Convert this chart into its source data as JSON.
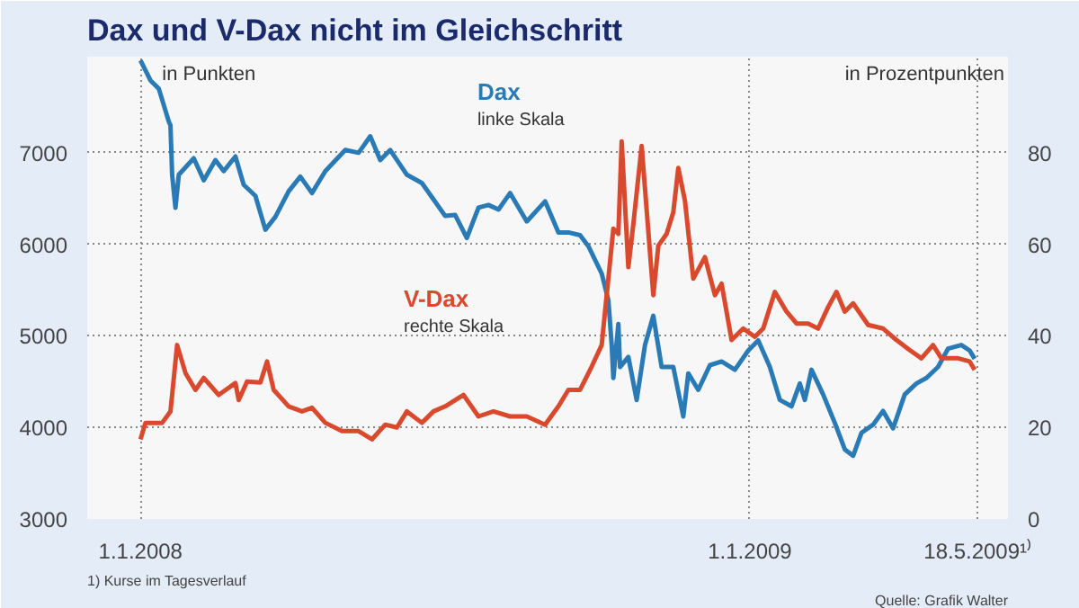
{
  "chart_data": {
    "type": "line",
    "title": "Dax und V-Dax nicht im Gleichschritt",
    "ylabel": "in Punkten",
    "y2label": "in Prozentpunkten",
    "xlim": [
      "2007-11-30",
      "2009-06-05"
    ],
    "xticks": [
      {
        "value": "2008-01-01",
        "label": "1.1.2008"
      },
      {
        "value": "2009-01-01",
        "label": "1.1.2009"
      },
      {
        "value": "2009-05-18",
        "label": "18.5.2009¹⁾"
      }
    ],
    "ylim": [
      3000,
      8050
    ],
    "yticks": [
      3000,
      4000,
      5000,
      6000,
      7000
    ],
    "y2lim": [
      0,
      101
    ],
    "y2ticks": [
      0,
      20,
      40,
      60,
      80
    ],
    "grid": true,
    "annotations": [
      "linke Skala",
      "rechte Skala",
      "1) Kurse im Tagesverlauf",
      "Quelle: Grafik Walter"
    ],
    "series": [
      {
        "name": "Dax",
        "color": "#2a7ab5",
        "x": [
          "2008-01-01",
          "2008-01-07",
          "2008-01-12",
          "2008-01-18",
          "2008-01-19",
          "2008-01-20",
          "2008-01-22",
          "2008-01-24",
          "2008-02-02",
          "2008-02-08",
          "2008-02-15",
          "2008-02-20",
          "2008-02-27",
          "2008-03-03",
          "2008-03-10",
          "2008-03-16",
          "2008-03-22",
          "2008-03-30",
          "2008-04-06",
          "2008-04-13",
          "2008-04-21",
          "2008-05-03",
          "2008-05-11",
          "2008-05-18",
          "2008-05-24",
          "2008-05-30",
          "2008-06-09",
          "2008-06-18",
          "2008-06-25",
          "2008-07-02",
          "2008-07-08",
          "2008-07-15",
          "2008-07-22",
          "2008-07-28",
          "2008-08-03",
          "2008-08-10",
          "2008-08-20",
          "2008-08-31",
          "2008-09-08",
          "2008-09-14",
          "2008-09-21",
          "2008-09-26",
          "2008-10-04",
          "2008-10-08",
          "2008-10-10",
          "2008-10-11",
          "2008-10-14",
          "2008-10-15",
          "2008-10-20",
          "2008-10-25",
          "2008-10-30",
          "2008-11-04",
          "2008-11-09",
          "2008-11-16",
          "2008-11-22",
          "2008-11-25",
          "2008-12-01",
          "2008-12-08",
          "2008-12-15",
          "2008-12-23",
          "2008-12-31",
          "2009-01-06",
          "2009-01-13",
          "2009-01-19",
          "2009-01-26",
          "2009-01-31",
          "2009-02-03",
          "2009-02-07",
          "2009-02-14",
          "2009-02-21",
          "2009-02-27",
          "2009-03-04",
          "2009-03-09",
          "2009-03-16",
          "2009-03-22",
          "2009-03-28",
          "2009-04-04",
          "2009-04-11",
          "2009-04-17",
          "2009-04-24",
          "2009-04-30",
          "2009-05-08",
          "2009-05-13",
          "2009-05-16"
        ],
        "values": [
          8010,
          7790,
          7700,
          7340,
          7300,
          6760,
          6400,
          6760,
          6940,
          6700,
          6920,
          6800,
          6960,
          6650,
          6530,
          6160,
          6300,
          6580,
          6740,
          6560,
          6800,
          7030,
          7000,
          7180,
          6920,
          7030,
          6760,
          6670,
          6490,
          6310,
          6320,
          6070,
          6400,
          6430,
          6380,
          6560,
          6250,
          6470,
          6130,
          6130,
          6100,
          5980,
          5680,
          5390,
          4900,
          4540,
          5130,
          4660,
          4770,
          4300,
          4900,
          5220,
          4660,
          4660,
          4120,
          4590,
          4410,
          4680,
          4720,
          4630,
          4840,
          4950,
          4660,
          4300,
          4230,
          4480,
          4300,
          4630,
          4360,
          4050,
          3760,
          3690,
          3940,
          4030,
          4180,
          3990,
          4360,
          4480,
          4540,
          4660,
          4860,
          4900,
          4840,
          4750
        ]
      },
      {
        "name": "V-Dax",
        "color": "#d9492e",
        "axis": "y2",
        "x": [
          "2008-01-01",
          "2008-01-04",
          "2008-01-14",
          "2008-01-19",
          "2008-01-23",
          "2008-01-28",
          "2008-02-03",
          "2008-02-08",
          "2008-02-17",
          "2008-02-27",
          "2008-02-29",
          "2008-03-05",
          "2008-03-13",
          "2008-03-17",
          "2008-03-21",
          "2008-03-30",
          "2008-04-07",
          "2008-04-13",
          "2008-04-21",
          "2008-05-01",
          "2008-05-11",
          "2008-05-19",
          "2008-05-27",
          "2008-06-03",
          "2008-06-09",
          "2008-06-18",
          "2008-06-25",
          "2008-07-02",
          "2008-07-13",
          "2008-07-22",
          "2008-07-31",
          "2008-08-10",
          "2008-08-20",
          "2008-08-31",
          "2008-09-08",
          "2008-09-14",
          "2008-09-21",
          "2008-09-28",
          "2008-10-04",
          "2008-10-11",
          "2008-10-14",
          "2008-10-16",
          "2008-10-20",
          "2008-10-23",
          "2008-10-28",
          "2008-11-04",
          "2008-11-07",
          "2008-11-12",
          "2008-11-16",
          "2008-11-19",
          "2008-11-23",
          "2008-11-28",
          "2008-12-05",
          "2008-12-11",
          "2008-12-15",
          "2008-12-21",
          "2008-12-28",
          "2009-01-04",
          "2009-01-09",
          "2009-01-16",
          "2009-01-23",
          "2009-01-29",
          "2009-02-05",
          "2009-02-11",
          "2009-02-17",
          "2009-02-22",
          "2009-02-27",
          "2009-03-04",
          "2009-03-13",
          "2009-03-22",
          "2009-03-30",
          "2009-04-07",
          "2009-04-14",
          "2009-04-21",
          "2009-04-26",
          "2009-05-06",
          "2009-05-13",
          "2009-05-16"
        ],
        "values": [
          17.4,
          21,
          21,
          23.5,
          38,
          31.9,
          28.2,
          30.8,
          27.1,
          29.7,
          26,
          30,
          29.8,
          34.4,
          28.2,
          24.6,
          23.5,
          24.3,
          21,
          19.2,
          19.2,
          17.4,
          20.6,
          20,
          23.5,
          21,
          23.5,
          24.6,
          27.1,
          22.4,
          23.5,
          22.4,
          22.4,
          20.6,
          24.6,
          28.2,
          28.2,
          33.3,
          38,
          63.4,
          62.3,
          82.5,
          55,
          64.4,
          81.5,
          48.9,
          59.7,
          62.3,
          67,
          76.7,
          69.5,
          52.5,
          57.2,
          48.9,
          51.4,
          39.1,
          41.6,
          39.8,
          41.6,
          49.6,
          45.3,
          42.7,
          42.7,
          41.6,
          46.3,
          49.6,
          45.3,
          47.1,
          42.4,
          41.6,
          39.1,
          36.9,
          35.1,
          38,
          35.1,
          35.1,
          34.4,
          32.6
        ]
      }
    ]
  }
}
